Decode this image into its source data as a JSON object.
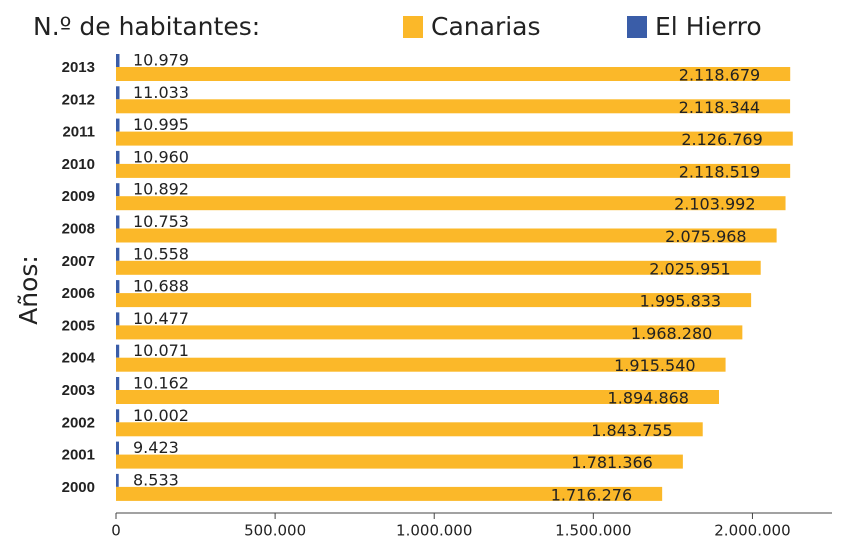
{
  "chart_data": {
    "type": "barh",
    "title": "N.º de habitantes:",
    "y_label": "Años:",
    "categories": [
      "2013",
      "2012",
      "2011",
      "2010",
      "2009",
      "2008",
      "2007",
      "2006",
      "2005",
      "2004",
      "2003",
      "2002",
      "2001",
      "2000"
    ],
    "series": [
      {
        "name": "Canarias",
        "color": "#fbb829",
        "values": [
          2118679,
          2118344,
          2126769,
          2118519,
          2103992,
          2075968,
          2025951,
          1995833,
          1968280,
          1915540,
          1894868,
          1843755,
          1781366,
          1716276
        ],
        "value_labels": [
          "2.118.679",
          "2.118.344",
          "2.126.769",
          "2.118.519",
          "2.103.992",
          "2.075.968",
          "2.025.951",
          "1.995.833",
          "1.968.280",
          "1.915.540",
          "1.894.868",
          "1.843.755",
          "1.781.366",
          "1.716.276"
        ]
      },
      {
        "name": "El Hierro",
        "color": "#3a5da8",
        "values": [
          10979,
          11033,
          10995,
          10960,
          10892,
          10753,
          10558,
          10688,
          10477,
          10071,
          10162,
          10002,
          9423,
          8533
        ],
        "value_labels": [
          "10.979",
          "11.033",
          "10.995",
          "10.960",
          "10.892",
          "10.753",
          "10.558",
          "10.688",
          "10.477",
          "10.071",
          "10.162",
          "10.002",
          "9.423",
          "8.533"
        ]
      }
    ],
    "xlim": [
      0,
      2250000
    ],
    "xticks": [
      0,
      {
        "value": 500000,
        "label": "500.000"
      },
      {
        "value": 1000000,
        "label": "1.000.000"
      },
      {
        "value": 1500000,
        "label": "1.500.000"
      },
      {
        "value": 2000000,
        "label": "2.000.000"
      }
    ]
  }
}
